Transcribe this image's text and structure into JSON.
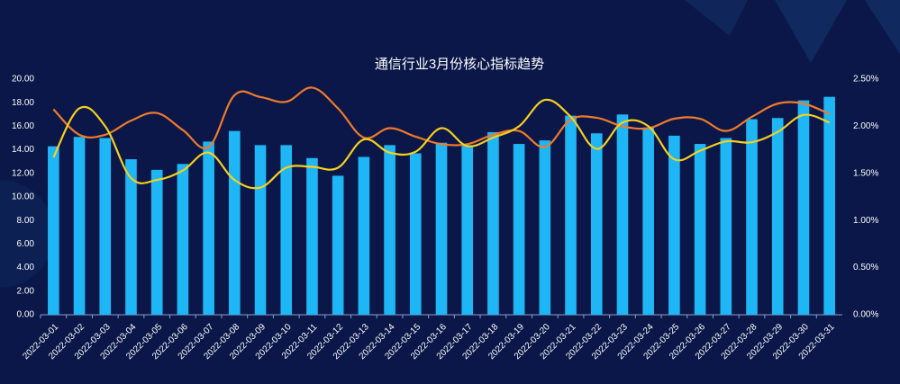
{
  "chart_data": {
    "type": "bar-line",
    "title": "通信行业3月份核心指标趋势",
    "categories": [
      "2022-03-01",
      "2022-03-02",
      "2022-03-03",
      "2022-03-04",
      "2022-03-05",
      "2022-03-06",
      "2022-03-07",
      "2022-03-08",
      "2022-03-09",
      "2022-03-10",
      "2022-03-11",
      "2022-03-12",
      "2022-03-13",
      "2022-03-14",
      "2022-03-15",
      "2022-03-16",
      "2022-03-17",
      "2022-03-18",
      "2022-03-19",
      "2022-03-20",
      "2022-03-21",
      "2022-03-22",
      "2022-03-23",
      "2022-03-24",
      "2022-03-25",
      "2022-03-26",
      "2022-03-27",
      "2022-03-28",
      "2022-03-29",
      "2022-03-30",
      "2022-03-31"
    ],
    "series": [
      {
        "type": "bar",
        "color": "#1fb6f5",
        "values": [
          14.3,
          15.1,
          15.0,
          13.2,
          12.3,
          12.8,
          14.7,
          15.6,
          14.4,
          14.4,
          13.3,
          11.8,
          13.4,
          14.4,
          13.7,
          14.6,
          14.4,
          15.5,
          14.5,
          14.8,
          16.9,
          15.4,
          17.0,
          15.9,
          15.2,
          14.5,
          15.0,
          16.6,
          16.7,
          18.2,
          18.5
        ]
      },
      {
        "type": "line",
        "axis": "y2",
        "color": "#f07a2a",
        "values": [
          2.18,
          1.91,
          1.91,
          2.06,
          2.14,
          1.96,
          1.78,
          2.33,
          2.31,
          2.26,
          2.41,
          2.19,
          1.88,
          1.98,
          1.89,
          1.81,
          1.81,
          1.91,
          1.95,
          1.78,
          2.07,
          2.09,
          2.0,
          1.98,
          2.08,
          2.08,
          1.95,
          2.1,
          2.24,
          2.24,
          2.13
        ]
      },
      {
        "type": "line",
        "axis": "y2",
        "color": "#f5d020",
        "values": [
          1.67,
          2.19,
          2.0,
          1.45,
          1.43,
          1.53,
          1.72,
          1.43,
          1.35,
          1.56,
          1.57,
          1.56,
          1.86,
          1.72,
          1.73,
          1.98,
          1.79,
          1.88,
          2.0,
          2.28,
          2.1,
          1.76,
          2.04,
          2.0,
          1.65,
          1.74,
          1.84,
          1.83,
          1.94,
          2.12,
          2.04
        ]
      }
    ],
    "ylim": [
      0,
      20
    ],
    "yticks": [
      {
        "value": 0,
        "label": "0.00"
      },
      {
        "value": 2,
        "label": "2.00"
      },
      {
        "value": 4,
        "label": "4.00"
      },
      {
        "value": 6,
        "label": "6.00"
      },
      {
        "value": 8,
        "label": "8.00"
      },
      {
        "value": 10,
        "label": "10.00"
      },
      {
        "value": 12,
        "label": "12.00"
      },
      {
        "value": 14,
        "label": "14.00"
      },
      {
        "value": 16,
        "label": "16.00"
      },
      {
        "value": 18,
        "label": "18.00"
      },
      {
        "value": 20,
        "label": "20.00"
      }
    ],
    "y2lim": [
      0,
      2.5
    ],
    "y2ticks": [
      {
        "value": 0,
        "label": "0.00%"
      },
      {
        "value": 0.5,
        "label": "0.50%"
      },
      {
        "value": 1,
        "label": "1.00%"
      },
      {
        "value": 1.5,
        "label": "1.50%"
      },
      {
        "value": 2,
        "label": "2.00%"
      },
      {
        "value": 2.5,
        "label": "2.50%"
      }
    ]
  }
}
